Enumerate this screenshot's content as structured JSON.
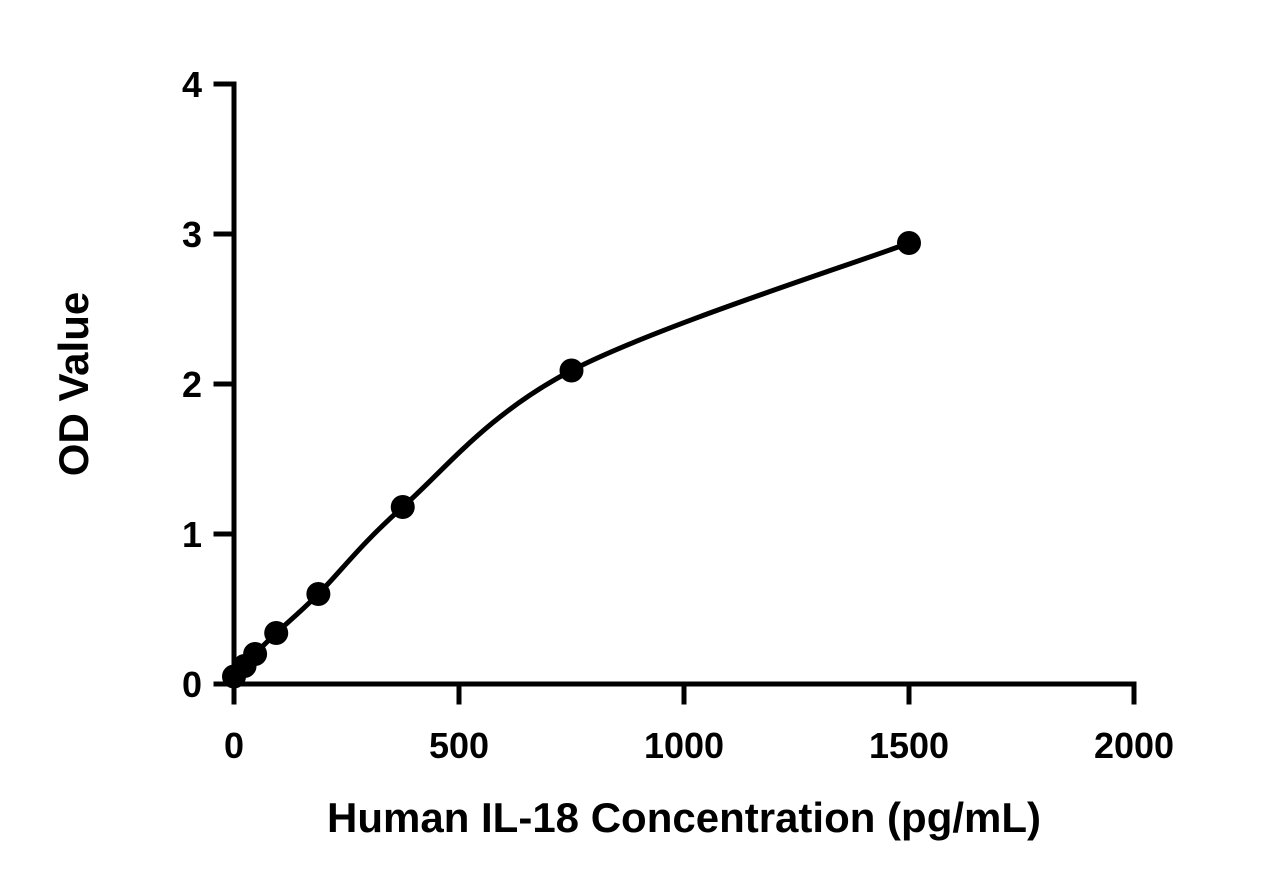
{
  "chart_data": {
    "type": "scatter",
    "title": "",
    "xlabel": "Human IL-18 Concentration (pg/mL)",
    "ylabel": "OD Value",
    "xlim": [
      0,
      2000
    ],
    "ylim": [
      0,
      4
    ],
    "xticks": [
      0,
      500,
      1000,
      1500,
      2000
    ],
    "yticks": [
      0,
      1,
      2,
      3,
      4
    ],
    "xtick_labels": [
      "0",
      "500",
      "1000",
      "1500",
      "2000"
    ],
    "ytick_labels": [
      "0",
      "1",
      "2",
      "3",
      "4"
    ],
    "grid": false,
    "legend": "none",
    "marker_color": "#000000",
    "line_color": "#000000",
    "fit_curve": true,
    "points": [
      {
        "x": 0,
        "y": 0.05
      },
      {
        "x": 23.4,
        "y": 0.12
      },
      {
        "x": 46.9,
        "y": 0.2
      },
      {
        "x": 93.8,
        "y": 0.34
      },
      {
        "x": 187.5,
        "y": 0.6
      },
      {
        "x": 375,
        "y": 1.18
      },
      {
        "x": 750,
        "y": 2.09
      },
      {
        "x": 1500,
        "y": 2.94
      }
    ]
  }
}
